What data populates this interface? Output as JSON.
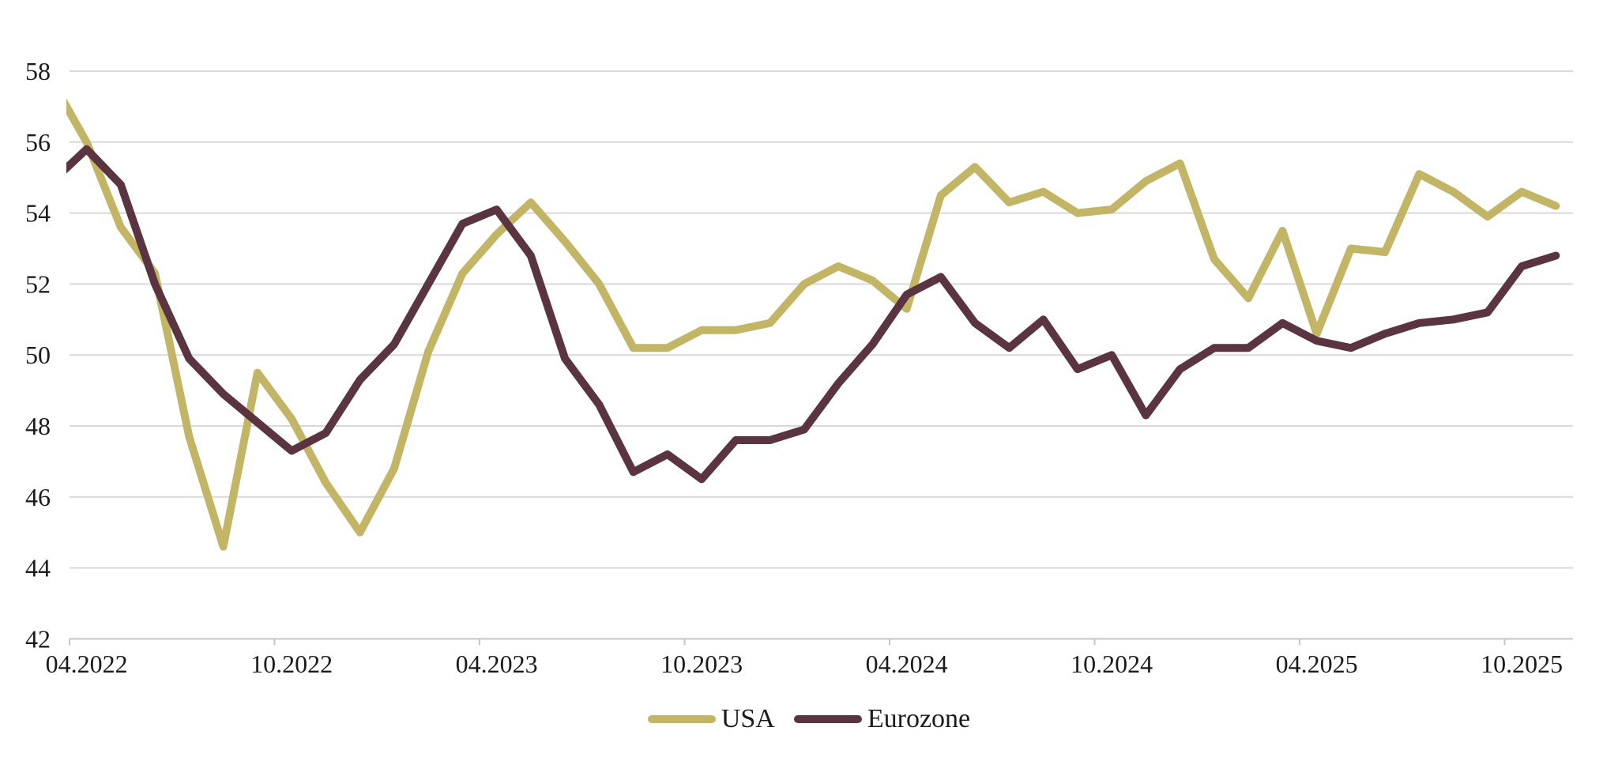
{
  "chart_data": {
    "type": "line",
    "title": "",
    "x": [
      "04.2022",
      "05.2022",
      "06.2022",
      "07.2022",
      "08.2022",
      "09.2022",
      "10.2022",
      "11.2022",
      "12.2022",
      "01.2023",
      "02.2023",
      "03.2023",
      "04.2023",
      "05.2023",
      "06.2023",
      "07.2023",
      "08.2023",
      "09.2023",
      "10.2023",
      "11.2023",
      "12.2023",
      "01.2024",
      "02.2024",
      "03.2024",
      "04.2024",
      "05.2024",
      "06.2024",
      "07.2024",
      "08.2024",
      "09.2024",
      "10.2024",
      "11.2024",
      "12.2024",
      "01.2025",
      "02.2025",
      "03.2025",
      "04.2025",
      "05.2025",
      "06.2025",
      "07.2025",
      "08.2025",
      "09.2025",
      "10.2025",
      "11.2025"
    ],
    "x_axis_tick_labels": [
      "04.2022",
      "10.2022",
      "04.2023",
      "10.2023",
      "04.2024",
      "10.2024",
      "04.2025",
      "10.2025"
    ],
    "y_ticks": [
      42,
      44,
      46,
      48,
      50,
      52,
      54,
      56,
      58
    ],
    "ylim": [
      42,
      58
    ],
    "grid": "horizontal-only",
    "legend_position": "bottom-center",
    "series": [
      {
        "name": "USA",
        "color": "#c3b566",
        "lead_in_clipped_value": 57.7,
        "values": [
          56.0,
          53.6,
          52.3,
          47.7,
          44.6,
          49.5,
          48.2,
          46.4,
          45.0,
          46.8,
          50.1,
          52.3,
          53.4,
          54.3,
          53.2,
          52.0,
          50.2,
          50.2,
          50.7,
          50.7,
          50.9,
          52.0,
          52.5,
          52.1,
          51.3,
          54.5,
          55.3,
          54.3,
          54.6,
          54.0,
          54.1,
          54.9,
          55.4,
          52.7,
          51.6,
          53.5,
          50.6,
          53.0,
          52.9,
          55.1,
          54.6,
          53.9,
          54.6,
          54.2
        ]
      },
      {
        "name": "Eurozone",
        "color": "#5a3541",
        "lead_in_clipped_value": 54.9,
        "values": [
          55.8,
          54.8,
          52.0,
          49.9,
          48.9,
          48.1,
          47.3,
          47.8,
          49.3,
          50.3,
          52.0,
          53.7,
          54.1,
          52.8,
          49.9,
          48.6,
          46.7,
          47.2,
          46.5,
          47.6,
          47.6,
          47.9,
          49.2,
          50.3,
          51.7,
          52.2,
          50.9,
          50.2,
          51.0,
          49.6,
          50.0,
          48.3,
          49.6,
          50.2,
          50.2,
          50.9,
          50.4,
          50.2,
          50.6,
          50.9,
          51.0,
          51.2,
          52.5,
          52.8
        ]
      }
    ]
  },
  "legend": {
    "items": [
      {
        "label": "USA"
      },
      {
        "label": "Eurozone"
      }
    ]
  },
  "colors": {
    "background": "#ffffff",
    "gridline": "#d9d9dd",
    "axis_line": "#c6c6ca",
    "tick_label": "#1b1b1b",
    "usa_line": "#c3b566",
    "eurozone_line": "#5a3541"
  }
}
